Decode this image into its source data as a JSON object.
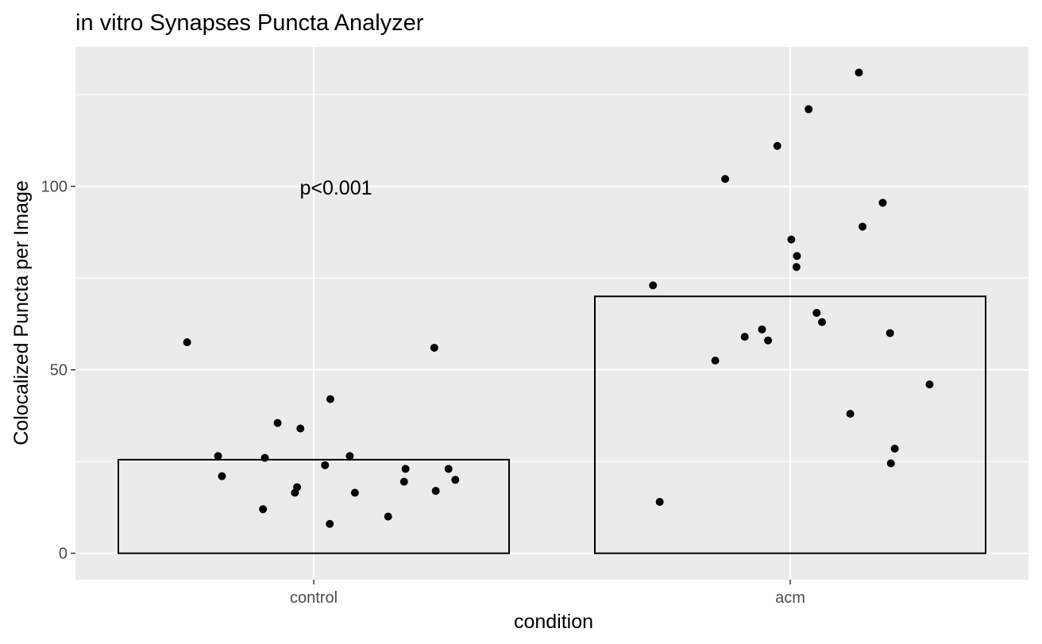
{
  "chart_data": {
    "type": "bar",
    "title": "in vitro Synapses Puncta Analyzer",
    "xlabel": "condition",
    "ylabel": "Colocalized Puncta per Image",
    "categories": [
      "control",
      "acm"
    ],
    "values": [
      25.5,
      70
    ],
    "ylim": [
      -7.2,
      138
    ],
    "yticks": [
      0,
      50,
      100
    ],
    "ytick_labels": [
      "0",
      "50",
      "100"
    ],
    "grid": true,
    "annotation": "p<0.001",
    "points": {
      "control": [
        56,
        57.5,
        42,
        35.5,
        34,
        26.5,
        26.5,
        26,
        24,
        23,
        23,
        21,
        20,
        19.5,
        18,
        17,
        16.5,
        16.5,
        12,
        10,
        8
      ],
      "acm": [
        131,
        121,
        111,
        102,
        95.5,
        89,
        85.5,
        81,
        78,
        73,
        65.5,
        63,
        61,
        60,
        59,
        58,
        52.5,
        46,
        38,
        28.5,
        24.5,
        14
      ]
    },
    "colors": {
      "panel": "#ebebeb",
      "grid": "#ffffff",
      "bar_outline": "#000000",
      "bar_fill": "none",
      "point": "#000000"
    }
  }
}
